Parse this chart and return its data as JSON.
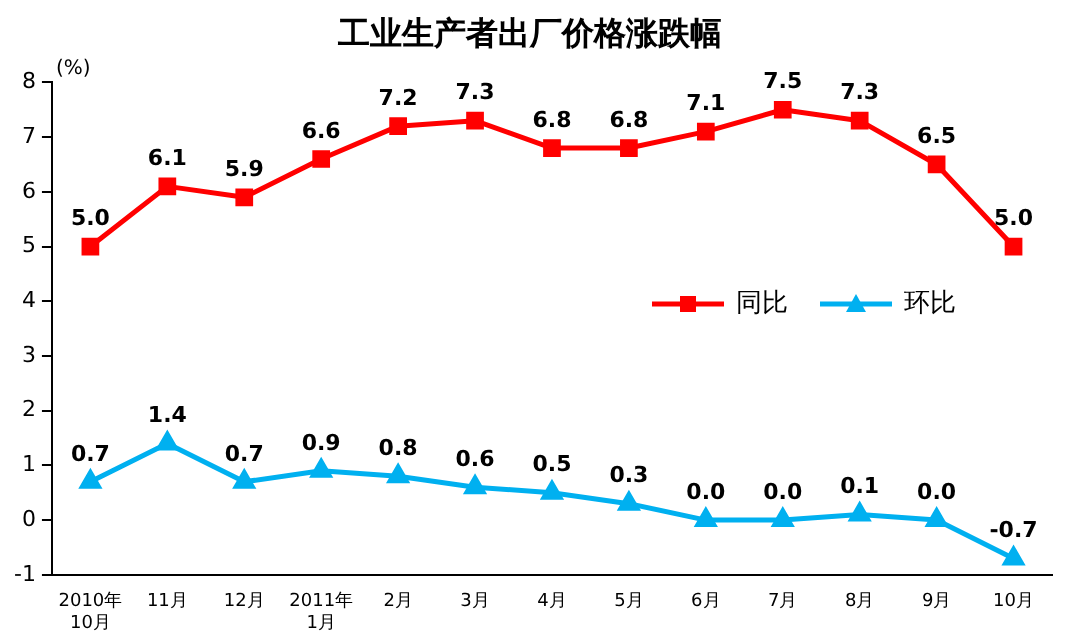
{
  "chart_data": {
    "type": "line",
    "title": "工业生产者出厂价格涨跌幅",
    "ylabel": "(%)",
    "categories": [
      "2010年\n10月",
      "11月",
      "12月",
      "2011年\n1月",
      "2月",
      "3月",
      "4月",
      "5月",
      "6月",
      "7月",
      "8月",
      "9月",
      "10月"
    ],
    "series": [
      {
        "name": "同比",
        "color": "#ff0000",
        "marker": "square",
        "values": [
          5.0,
          6.1,
          5.9,
          6.6,
          7.2,
          7.3,
          6.8,
          6.8,
          7.1,
          7.5,
          7.3,
          6.5,
          5.0
        ],
        "value_labels": [
          "5.0",
          "6.1",
          "5.9",
          "6.6",
          "7.2",
          "7.3",
          "6.8",
          "6.8",
          "7.1",
          "7.5",
          "7.3",
          "6.5",
          "5.0"
        ]
      },
      {
        "name": "环比",
        "color": "#00b0f0",
        "marker": "triangle",
        "values": [
          0.7,
          1.4,
          0.7,
          0.9,
          0.8,
          0.6,
          0.5,
          0.3,
          0.0,
          0.0,
          0.1,
          0.0,
          -0.7
        ],
        "value_labels": [
          "0.7",
          "1.4",
          "0.7",
          "0.9",
          "0.8",
          "0.6",
          "0.5",
          "0.3",
          "0.0",
          "0.0",
          "0.1",
          "0.0",
          "-0.7"
        ]
      }
    ],
    "ylim": [
      -1,
      8
    ],
    "yticks": [
      -1,
      0,
      1,
      2,
      3,
      4,
      5,
      6,
      7,
      8
    ],
    "grid": false,
    "legend": "right",
    "line_style": "solid"
  }
}
